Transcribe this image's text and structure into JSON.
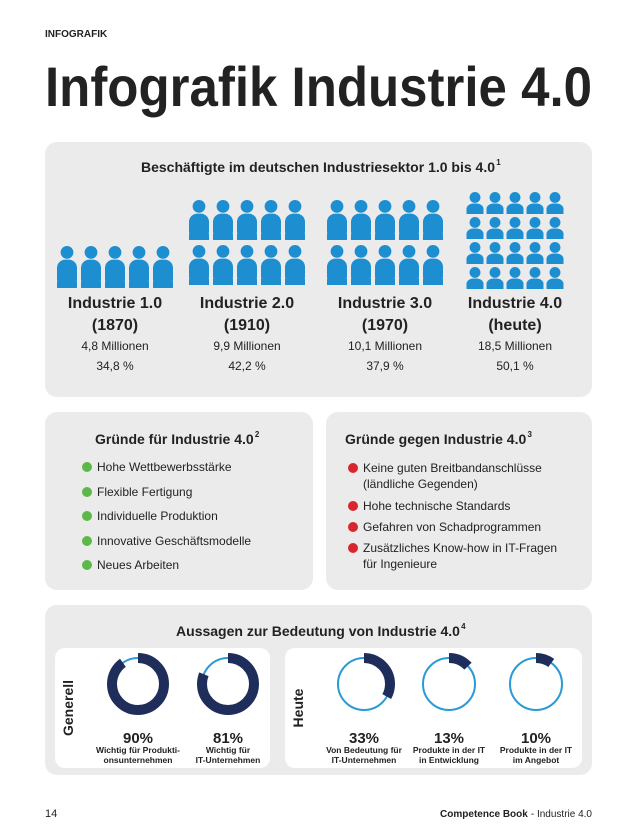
{
  "header": {
    "label": "INFOGRAFIK",
    "title": "Infografik Industrie 4.0"
  },
  "employment": {
    "title": "Beschäftigte im deutschen Industriesektor 1.0 bis 4.0",
    "footnote": "1",
    "eras": [
      {
        "name": "Industrie 1.0",
        "period": "(1870)",
        "employees": "4,8 Millionen",
        "share": "34,8 %"
      },
      {
        "name": "Industrie 2.0",
        "period": "(1910)",
        "employees": "9,9 Millionen",
        "share": "42,2 %"
      },
      {
        "name": "Industrie 3.0",
        "period": "(1970)",
        "employees": "10,1 Millionen",
        "share": "37,9 %"
      },
      {
        "name": "Industrie 4.0",
        "period": "(heute)",
        "employees": "18,5 Millionen",
        "share": "50,1 %"
      }
    ]
  },
  "reasons_for": {
    "title": "Gründe für Industrie 4.0",
    "footnote": "2",
    "items": [
      [
        "Hohe Wettbewerbsstärke"
      ],
      [
        "Flexible Fertigung"
      ],
      [
        "Individuelle Produktion"
      ],
      [
        "Innovative Geschäftsmodelle"
      ],
      [
        "Neues Arbeiten"
      ]
    ]
  },
  "reasons_against": {
    "title": "Gründe gegen Industrie 4.0",
    "footnote": "3",
    "items": [
      [
        "Keine guten Breitbandanschlüsse",
        "(ländliche Gegenden)"
      ],
      [
        "Hohe technische Standards"
      ],
      [
        "Gefahren von Schadprogrammen"
      ],
      [
        "Zusätzliches Know-how in IT-Fragen",
        "für Ingenieure"
      ]
    ]
  },
  "statements": {
    "title": "Aussagen zur Bedeutung von Industrie 4.0",
    "footnote": "4",
    "groups": [
      {
        "label": "Generell",
        "items": [
          {
            "value": 90,
            "label": "90%",
            "caption": [
              "Wichtig für Produkti-",
              "onsunternehmen"
            ]
          },
          {
            "value": 81,
            "label": "81%",
            "caption": [
              "Wichtig für",
              "IT-Unternehmen"
            ]
          }
        ]
      },
      {
        "label": "Heute",
        "items": [
          {
            "value": 33,
            "label": "33%",
            "caption": [
              "Von Bedeutung für",
              "IT-Unternehmen"
            ]
          },
          {
            "value": 13,
            "label": "13%",
            "caption": [
              "Produkte in der IT",
              "in Entwicklung"
            ]
          },
          {
            "value": 10,
            "label": "10%",
            "caption": [
              "Produkte in der IT",
              "im Angebot"
            ]
          }
        ]
      }
    ]
  },
  "footer": {
    "page": "14",
    "brand": "Competence Book",
    "section": "- Industrie 4.0"
  }
}
